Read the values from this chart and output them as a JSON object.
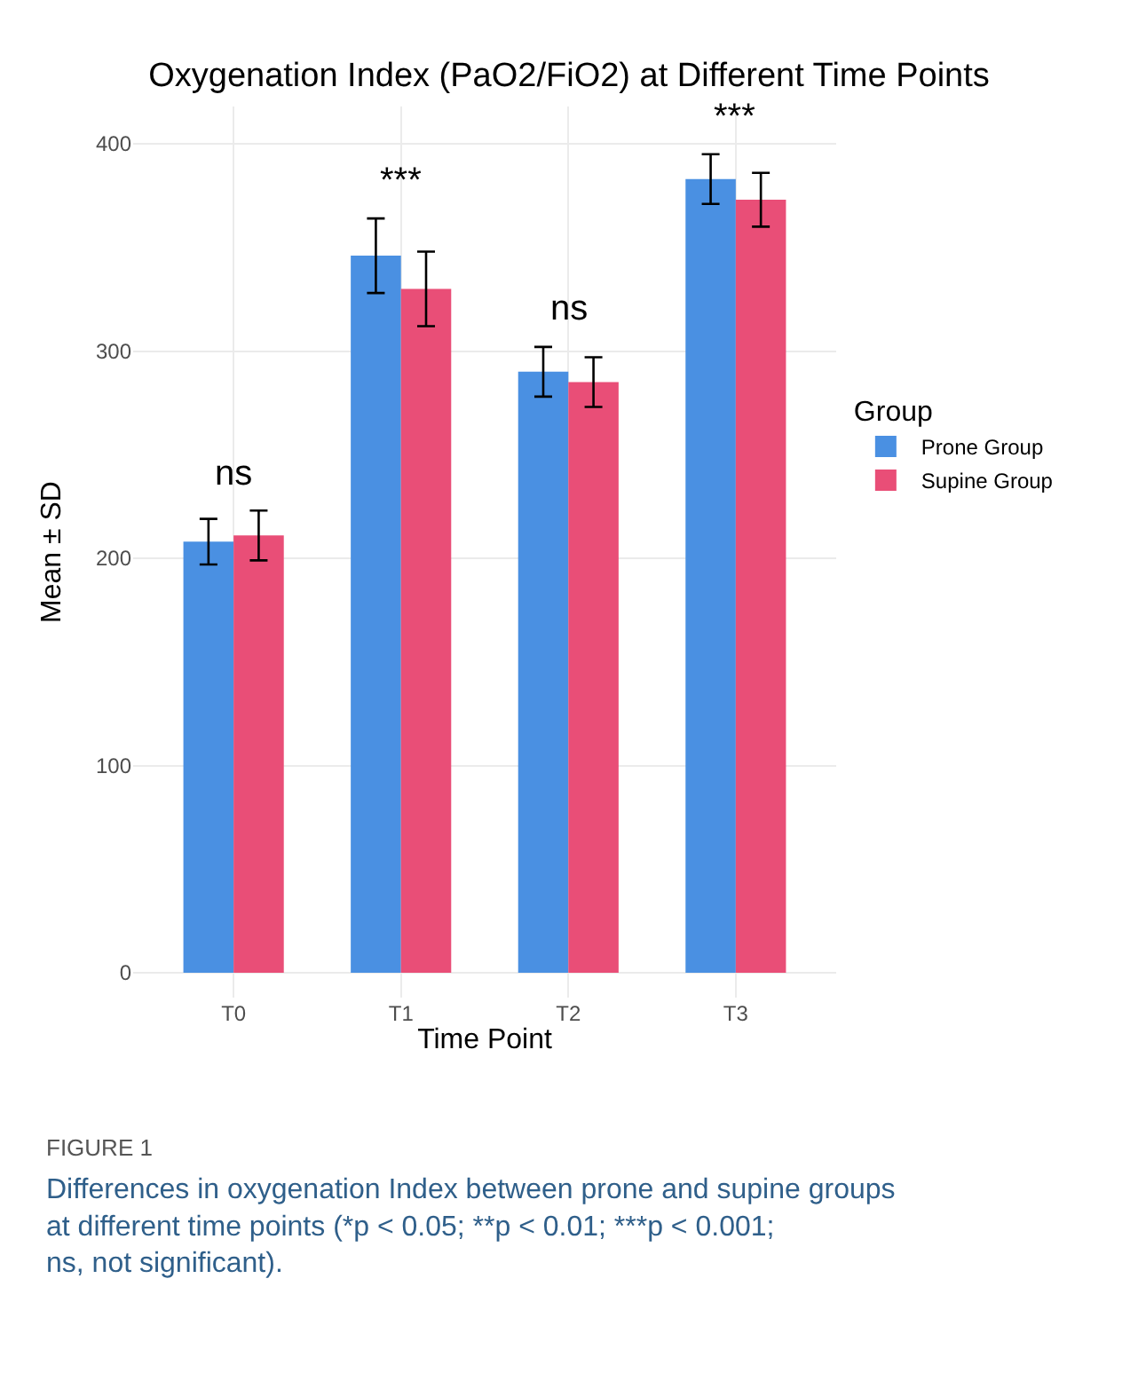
{
  "chart_data": {
    "type": "bar",
    "title": "Oxygenation Index (PaO2/FiO2) at Different Time Points",
    "xlabel": "Time Point",
    "ylabel": "Mean ± SD",
    "legend_title": "Group",
    "categories": [
      "T0",
      "T1",
      "T2",
      "T3"
    ],
    "series": [
      {
        "name": "Prone Group",
        "color": "#4a90e2",
        "values": [
          208,
          346,
          290,
          383
        ],
        "errors": [
          11,
          18,
          12,
          12
        ]
      },
      {
        "name": "Supine Group",
        "color": "#e94e77",
        "values": [
          211,
          330,
          285,
          373
        ],
        "errors": [
          12,
          18,
          12,
          13
        ]
      }
    ],
    "ylim": [
      -12,
      418
    ],
    "yticks": [
      0,
      100,
      200,
      300,
      400
    ],
    "grid": true,
    "legend": "right",
    "annotations": [
      "ns",
      "***",
      "ns",
      "***",
      "FIGURE 1",
      "Differences in oxygenation Index between prone and supine groups at different time points (*p < 0.05; **p < 0.01; ***p < 0.001; ns, not significant)."
    ]
  }
}
